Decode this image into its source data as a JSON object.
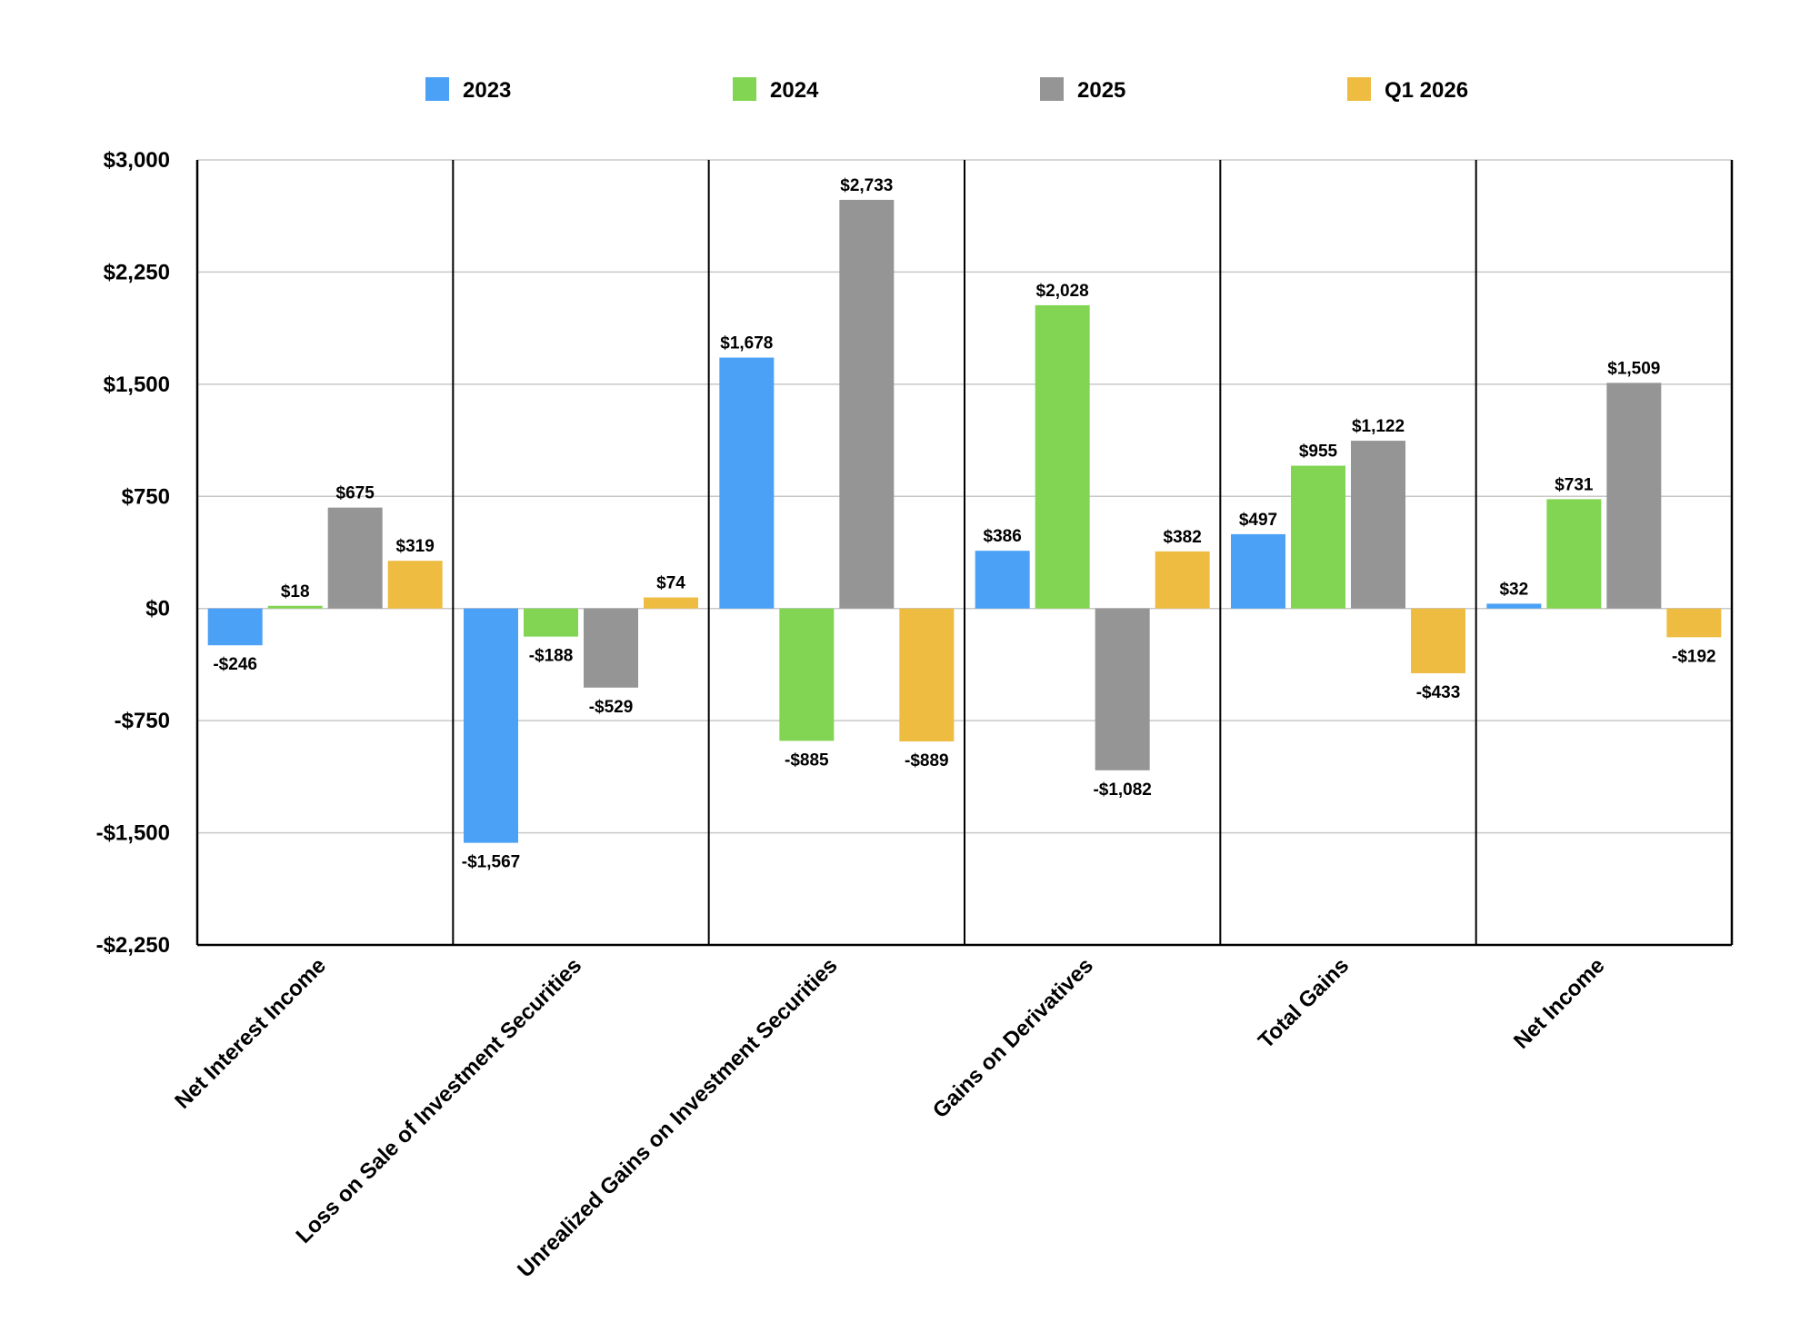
{
  "chart_data": {
    "type": "bar",
    "categories": [
      "Net Interest Income",
      "Loss on Sale of Investment Securities",
      "Unrealized Gains on Investment Securities",
      "Gains on Derivatives",
      "Total Gains",
      "Net Income"
    ],
    "series": [
      {
        "name": "2023",
        "color": "#4aa1f6",
        "values": [
          -246,
          -1567,
          1678,
          386,
          497,
          32
        ],
        "labels": [
          "-$246",
          "-$1,567",
          "$1,678",
          "$386",
          "$497",
          "$32"
        ]
      },
      {
        "name": "2024",
        "color": "#82d553",
        "values": [
          18,
          -188,
          -885,
          2028,
          955,
          731
        ],
        "labels": [
          "$18",
          "-$188",
          "-$885",
          "$2,028",
          "$955",
          "$731"
        ]
      },
      {
        "name": "2025",
        "color": "#959595",
        "values": [
          675,
          -529,
          2733,
          -1082,
          1122,
          1509
        ],
        "labels": [
          "$675",
          "-$529",
          "$2,733",
          "-$1,082",
          "$1,122",
          "$1,509"
        ]
      },
      {
        "name": "Q1 2026",
        "color": "#efbc42",
        "values": [
          319,
          74,
          -889,
          382,
          -433,
          -192
        ],
        "labels": [
          "$319",
          "$74",
          "-$889",
          "$382",
          "-$433",
          "-$192"
        ]
      }
    ],
    "ylim": [
      -2250,
      3000
    ],
    "y_ticks": [
      3000,
      2250,
      1500,
      750,
      0,
      -750,
      -1500,
      -2250
    ],
    "y_tick_labels": [
      "$3,000",
      "$2,250",
      "$1,500",
      "$750",
      "$0",
      "-$750",
      "-$1,500",
      "-$2,250"
    ],
    "title": "",
    "xlabel": "",
    "ylabel": "",
    "grid": true,
    "legend_position": "top-center"
  }
}
